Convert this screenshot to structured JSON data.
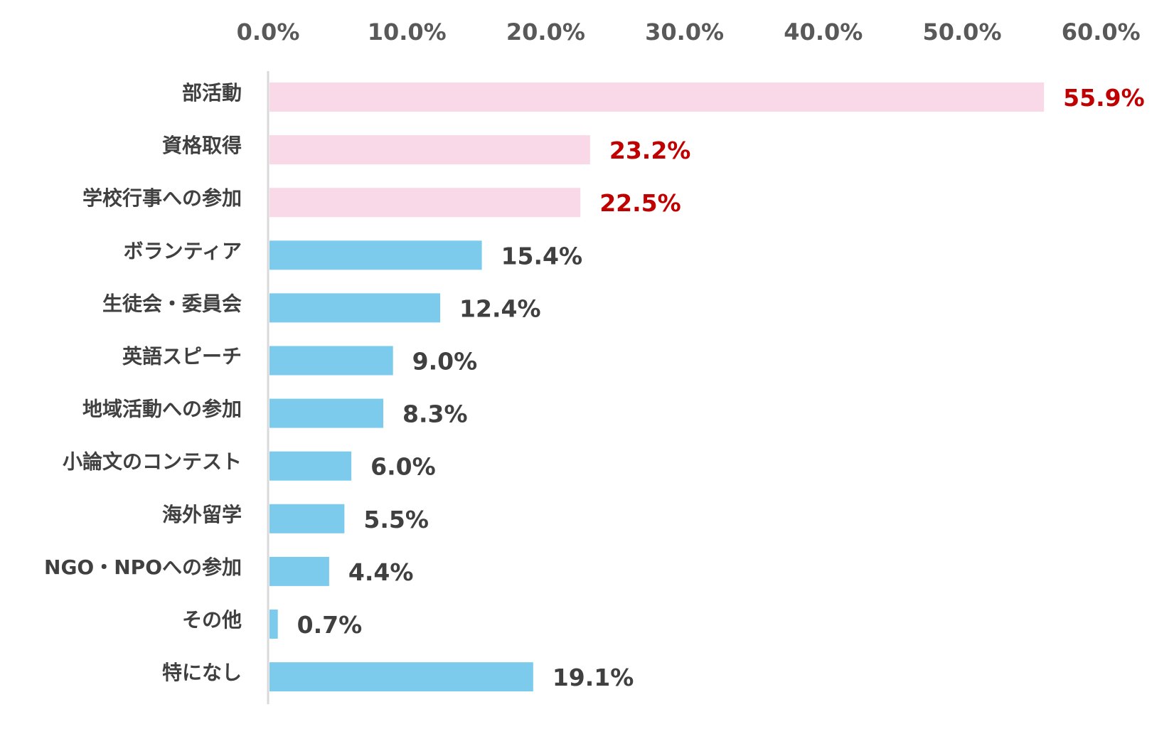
{
  "chart_data": {
    "type": "bar",
    "orientation": "horizontal",
    "title": "",
    "xlabel": "",
    "ylabel": "",
    "xlim": [
      0,
      60
    ],
    "ticks": [
      0,
      10,
      20,
      30,
      40,
      50,
      60
    ],
    "tick_labels": [
      "0.0%",
      "10.0%",
      "20.0%",
      "30.0%",
      "40.0%",
      "50.0%",
      "60.0%"
    ],
    "axis_position": "top",
    "grid": false,
    "categories": [
      "部活動",
      "資格取得",
      "学校行事への参加",
      "ボランティア",
      "生徒会・委員会",
      "英語スピーチ",
      "地域活動への参加",
      "小論文のコンテスト",
      "海外留学",
      "NGO・NPOへの参加",
      "その他",
      "特になし"
    ],
    "values": [
      55.9,
      23.2,
      22.5,
      15.4,
      12.4,
      9.0,
      8.3,
      6.0,
      5.5,
      4.4,
      0.7,
      19.1
    ],
    "value_labels": [
      "55.9%",
      "23.2%",
      "22.5%",
      "15.4%",
      "12.4%",
      "9.0%",
      "8.3%",
      "6.0%",
      "5.5%",
      "4.4%",
      "0.7%",
      "19.1%"
    ],
    "highlighted": [
      true,
      true,
      true,
      false,
      false,
      false,
      false,
      false,
      false,
      false,
      false,
      false
    ],
    "colors": {
      "highlight_bar": "#F9D8E8",
      "normal_bar": "#7DCBEC",
      "highlight_label": "#C00000",
      "normal_label": "#404040",
      "axis_line": "#D9D9D9"
    }
  }
}
